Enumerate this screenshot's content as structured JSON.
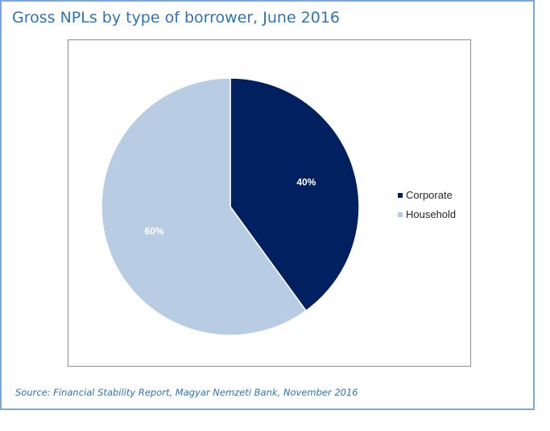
{
  "chart_data": {
    "type": "pie",
    "title": "Gross NPLs by type of borrower, June 2016",
    "categories": [
      "Corporate",
      "Household"
    ],
    "values": [
      40,
      60
    ],
    "value_labels": [
      "40%",
      "60%"
    ],
    "colors": [
      "#002060",
      "#b8cce4"
    ],
    "legend_position": "right"
  },
  "source": "Source: Financial Stability Report, Magyar Nemzeti Bank, November 2016"
}
